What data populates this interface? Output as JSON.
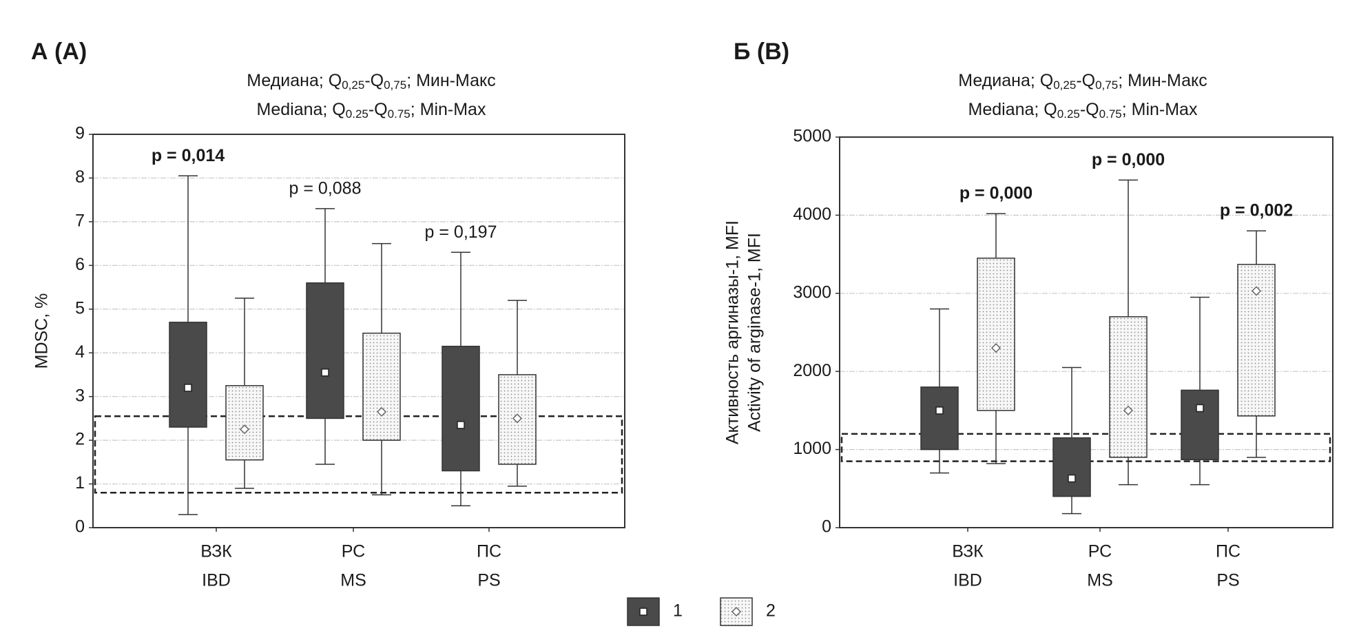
{
  "chart_data": [
    {
      "type": "box",
      "panel_label": "А (A)",
      "subtitle": [
        [
          "Медиана; Q",
          "0,25",
          "-Q",
          "0,75",
          "; Мин-Макс"
        ],
        [
          "Mediana; Q",
          "0.25",
          "-Q",
          "0.75",
          "; Min-Max"
        ]
      ],
      "y_label": [
        "MDSC, %"
      ],
      "categories": [
        [
          "ВЗК",
          "IBD"
        ],
        [
          "РС",
          "MS"
        ],
        [
          "ПС",
          "PS"
        ]
      ],
      "series": [
        {
          "name": "1",
          "color": "#4a4a4a",
          "marker": "square",
          "min": [
            0.3,
            1.45,
            0.5
          ],
          "q1": [
            2.3,
            2.5,
            1.3
          ],
          "median": [
            3.2,
            3.55,
            2.35
          ],
          "q3": [
            4.7,
            5.6,
            4.15
          ],
          "max": [
            8.05,
            7.3,
            6.3
          ]
        },
        {
          "name": "2",
          "color": "#f4f4f4",
          "pattern": "dots",
          "marker": "diamond",
          "min": [
            0.9,
            0.75,
            0.95
          ],
          "q1": [
            1.55,
            2.0,
            1.45
          ],
          "median": [
            2.25,
            2.65,
            2.5
          ],
          "q3": [
            3.25,
            4.45,
            3.5
          ],
          "max": [
            5.25,
            6.5,
            5.2
          ]
        }
      ],
      "p_values": [
        "p = 0,014",
        "p = 0,088",
        "p = 0,197"
      ],
      "p_bold": [
        true,
        false,
        false
      ],
      "reference_range": [
        0.8,
        2.55
      ],
      "ylim": [
        0,
        9
      ],
      "yticks": [
        0,
        1,
        2,
        3,
        4,
        5,
        6,
        7,
        8,
        9
      ],
      "grid": true
    },
    {
      "type": "box",
      "panel_label": "Б (B)",
      "subtitle": [
        [
          "Медиана; Q",
          "0,25",
          "-Q",
          "0,75",
          "; Мин-Макс"
        ],
        [
          "Mediana; Q",
          "0.25",
          "-Q",
          "0.75",
          "; Min-Max"
        ]
      ],
      "y_label": [
        "Активность аргиназы-1, MFI",
        "Activity of arginase-1, MFI"
      ],
      "categories": [
        [
          "ВЗК",
          "IBD"
        ],
        [
          "РС",
          "MS"
        ],
        [
          "ПС",
          "PS"
        ]
      ],
      "series": [
        {
          "color": "#4a4a4a",
          "marker": "square",
          "min": [
            700,
            180,
            550
          ],
          "q1": [
            1000,
            400,
            870
          ],
          "median": [
            1500,
            630,
            1530
          ],
          "q3": [
            1800,
            1150,
            1760
          ],
          "max": [
            2800,
            2050,
            2950
          ]
        },
        {
          "color": "#f4f4f4",
          "pattern": "dots",
          "marker": "diamond",
          "min": [
            820,
            550,
            900
          ],
          "q1": [
            1500,
            900,
            1430
          ],
          "median": [
            2300,
            1500,
            3030
          ],
          "q3": [
            3450,
            2700,
            3370
          ],
          "max": [
            4020,
            4450,
            3800
          ]
        }
      ],
      "p_values": [
        "p = 0,000",
        "p = 0,000",
        "p = 0,002"
      ],
      "p_bold": [
        true,
        true,
        true
      ],
      "reference_range": [
        850,
        1200
      ],
      "ylim": [
        0,
        5000
      ],
      "yticks": [
        0,
        1000,
        2000,
        3000,
        4000,
        5000
      ],
      "grid": true
    }
  ]
}
